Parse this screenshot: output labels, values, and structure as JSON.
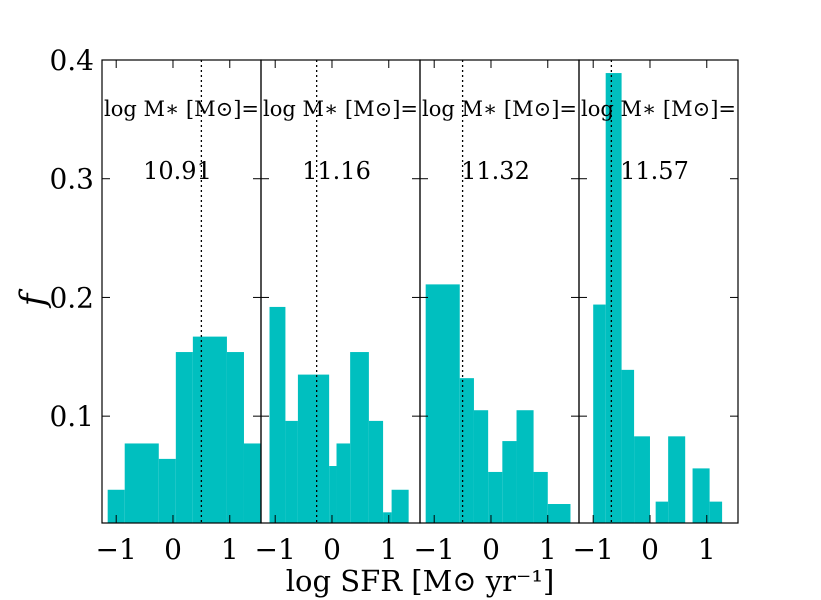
{
  "chart_data": {
    "type": "bar",
    "xlabel": "log SFR [M⊙ yr⁻¹]",
    "ylabel": "f",
    "ylim": [
      0.01,
      0.4
    ],
    "xlim": [
      -1.25,
      1.55
    ],
    "x_ticks": [
      -1,
      0,
      1
    ],
    "x_tick_labels": [
      "−1",
      "0",
      "1"
    ],
    "y_ticks": [
      0.1,
      0.2,
      0.3,
      0.4
    ],
    "y_tick_labels": [
      "0.1",
      "0.2",
      "0.3",
      "0.4"
    ],
    "color": "#00bfbf",
    "panels": [
      {
        "label": "log M∗ [M⊙]=",
        "value": "10.91",
        "median": 0.5,
        "bins": [
          {
            "x0": -1.15,
            "x1": -0.85,
            "y": 0.038
          },
          {
            "x0": -0.85,
            "x1": -0.25,
            "y": 0.077
          },
          {
            "x0": -0.25,
            "x1": 0.05,
            "y": 0.064
          },
          {
            "x0": 0.05,
            "x1": 0.35,
            "y": 0.154
          },
          {
            "x0": 0.35,
            "x1": 0.95,
            "y": 0.167
          },
          {
            "x0": 0.95,
            "x1": 1.25,
            "y": 0.154
          },
          {
            "x0": 1.25,
            "x1": 1.55,
            "y": 0.077
          }
        ]
      },
      {
        "label": "log M∗ [M⊙]=",
        "value": "11.16",
        "median": -0.27,
        "bins": [
          {
            "x0": -1.1,
            "x1": -0.82,
            "y": 0.192
          },
          {
            "x0": -0.82,
            "x1": -0.6,
            "y": 0.096
          },
          {
            "x0": -0.6,
            "x1": -0.05,
            "y": 0.135
          },
          {
            "x0": -0.05,
            "x1": 0.08,
            "y": 0.058
          },
          {
            "x0": 0.08,
            "x1": 0.32,
            "y": 0.077
          },
          {
            "x0": 0.32,
            "x1": 0.65,
            "y": 0.154
          },
          {
            "x0": 0.65,
            "x1": 0.9,
            "y": 0.096
          },
          {
            "x0": 0.9,
            "x1": 1.05,
            "y": 0.019
          },
          {
            "x0": 1.05,
            "x1": 1.35,
            "y": 0.038
          }
        ]
      },
      {
        "label": "log M∗ [M⊙]=",
        "value": "11.32",
        "median": -0.5,
        "bins": [
          {
            "x0": -1.15,
            "x1": -0.55,
            "y": 0.211
          },
          {
            "x0": -0.55,
            "x1": -0.3,
            "y": 0.132
          },
          {
            "x0": -0.3,
            "x1": -0.05,
            "y": 0.105
          },
          {
            "x0": -0.05,
            "x1": 0.2,
            "y": 0.053
          },
          {
            "x0": 0.2,
            "x1": 0.45,
            "y": 0.079
          },
          {
            "x0": 0.45,
            "x1": 0.75,
            "y": 0.105
          },
          {
            "x0": 0.75,
            "x1": 1.0,
            "y": 0.053
          },
          {
            "x0": 1.0,
            "x1": 1.4,
            "y": 0.026
          }
        ]
      },
      {
        "label": "log M∗ [M⊙]=",
        "value": "11.57",
        "median": -0.68,
        "bins": [
          {
            "x0": -1.0,
            "x1": -0.78,
            "y": 0.194
          },
          {
            "x0": -0.78,
            "x1": -0.5,
            "y": 0.389
          },
          {
            "x0": -0.5,
            "x1": -0.28,
            "y": 0.139
          },
          {
            "x0": -0.28,
            "x1": 0.0,
            "y": 0.083
          },
          {
            "x0": 0.1,
            "x1": 0.32,
            "y": 0.028
          },
          {
            "x0": 0.32,
            "x1": 0.62,
            "y": 0.083
          },
          {
            "x0": 0.75,
            "x1": 1.05,
            "y": 0.056
          },
          {
            "x0": 1.05,
            "x1": 1.27,
            "y": 0.028
          }
        ]
      }
    ]
  }
}
